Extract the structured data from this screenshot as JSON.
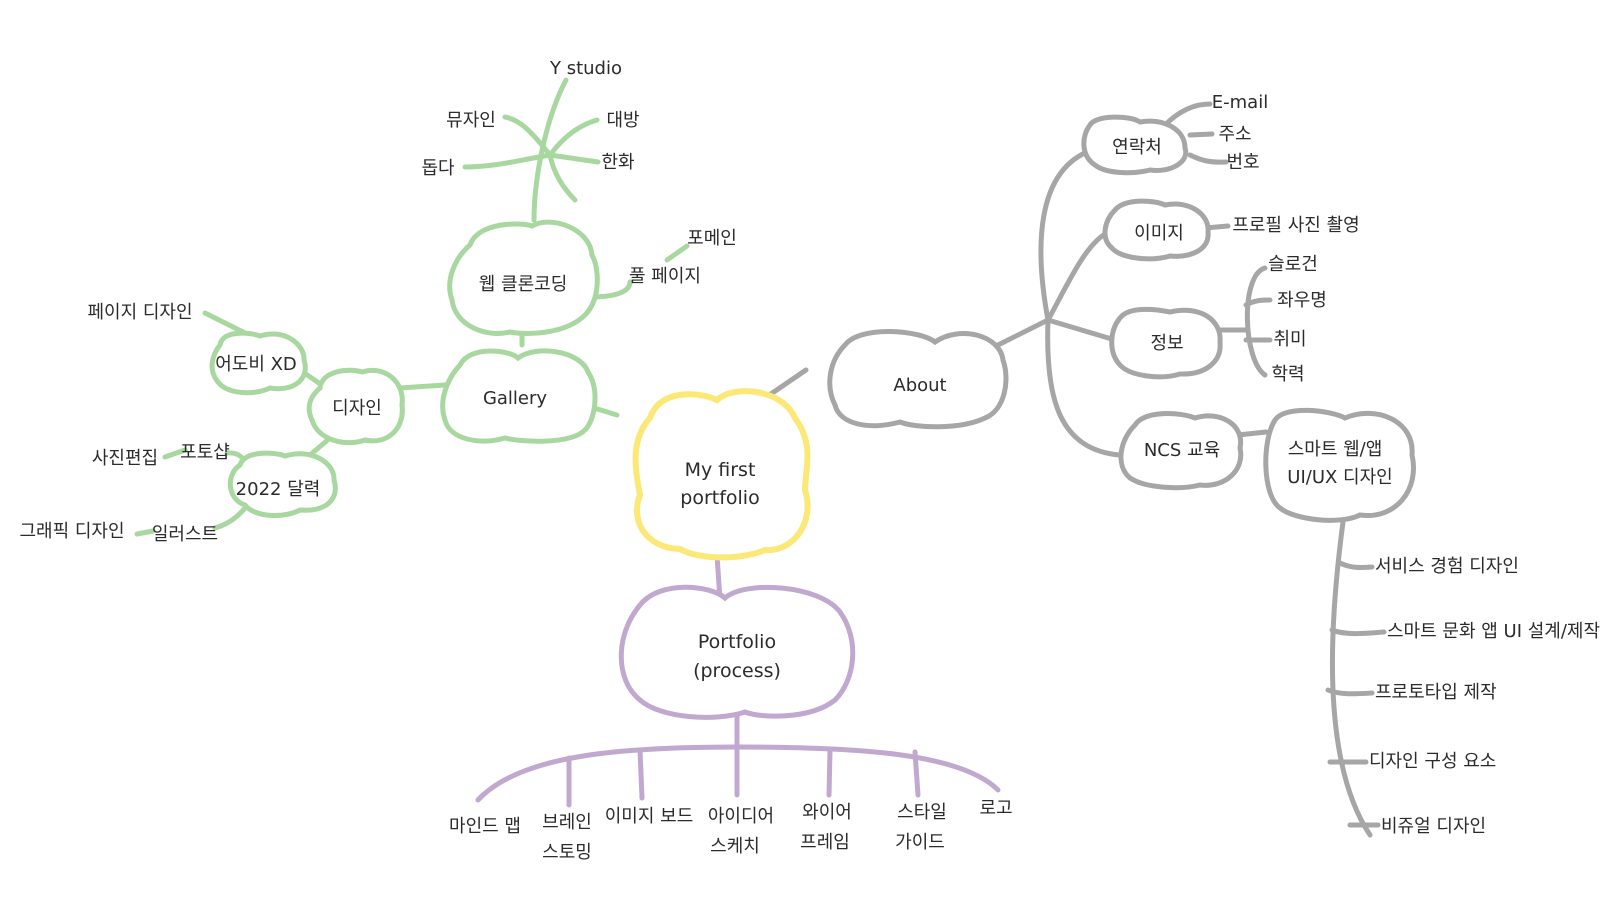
{
  "colors": {
    "center": "#fbe876",
    "gallery_branch": "#a9d7a0",
    "about_branch": "#a6a6a6",
    "portfolio_branch": "#c0a8cf",
    "text": "#2b2b2b"
  },
  "center": {
    "line1": "My first",
    "line2": "portfolio"
  },
  "gallery": {
    "label": "Gallery",
    "web": {
      "label": "웹 클론코딩",
      "y_studio": "Y studio",
      "brands": [
        "뮤자인",
        "대방",
        "돕다",
        "한화"
      ],
      "full_page": "풀 페이지",
      "four_main": "포메인"
    },
    "design": {
      "label": "디자인",
      "xd": {
        "label": "어도비 XD",
        "page_design": "페이지 디자인"
      },
      "calendar": {
        "label": "2022 달력",
        "photoshop": "포토샵",
        "photo_edit": "사진편집",
        "illustrator": "일러스트",
        "graphic_design": "그래픽 디자인"
      }
    }
  },
  "about": {
    "label": "About",
    "contact": {
      "label": "연락처",
      "items": [
        "E-mail",
        "주소",
        "번호"
      ]
    },
    "image": {
      "label": "이미지",
      "profile_photo": "프로필 사진 촬영"
    },
    "info": {
      "label": "정보",
      "items": [
        "슬로건",
        "좌우명",
        "취미",
        "학력"
      ]
    },
    "ncs": {
      "label": "NCS 교육",
      "course_line1": "스마트 웹/앱",
      "course_line2": "UI/UX 디자인",
      "topics": [
        "서비스 경험 디자인",
        "스마트 문화 앱 UI 설계/제작",
        "프로토타입 제작",
        "디자인 구성 요소",
        "비쥬얼 디자인"
      ]
    }
  },
  "portfolio": {
    "line1": "Portfolio",
    "line2": "(process)",
    "steps": [
      {
        "line1": "마인드 맵",
        "line2": ""
      },
      {
        "line1": "브레인",
        "line2": "스토밍"
      },
      {
        "line1": "이미지 보드",
        "line2": ""
      },
      {
        "line1": "아이디어",
        "line2": "스케치"
      },
      {
        "line1": "와이어",
        "line2": "프레임"
      },
      {
        "line1": "스타일",
        "line2": "가이드"
      },
      {
        "line1": "로고",
        "line2": ""
      }
    ]
  }
}
